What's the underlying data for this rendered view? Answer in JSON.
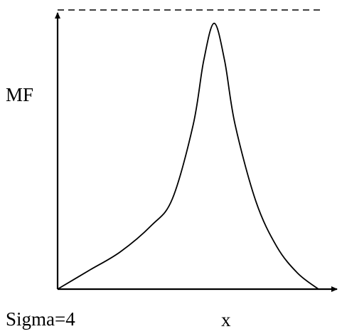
{
  "chart_data": {
    "type": "line",
    "title": "",
    "ylabel": "MF",
    "xlabel": "x",
    "annotation": "Sigma=4",
    "center": 0,
    "sigma": 4,
    "xlim": [
      -15,
      10
    ],
    "ylim": [
      0,
      1.05
    ],
    "peak_value": 1.0,
    "reference_line": {
      "y": 1.05,
      "style": "dashed"
    },
    "x": [
      -15,
      -12,
      -9,
      -6,
      -4,
      -2,
      -1,
      0,
      1,
      2,
      4,
      6,
      8,
      10
    ],
    "y": [
      0.0,
      0.07,
      0.14,
      0.24,
      0.34,
      0.62,
      0.86,
      1.0,
      0.86,
      0.62,
      0.33,
      0.16,
      0.06,
      0.0
    ],
    "grid": false,
    "legend": "none"
  },
  "colors": {
    "axis": "#000000",
    "curve": "#000000",
    "background": "#ffffff"
  }
}
